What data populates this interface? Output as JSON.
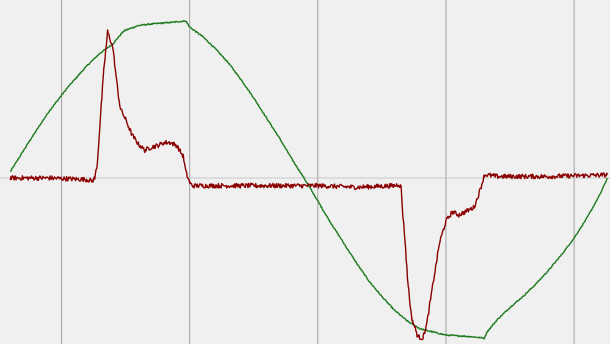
{
  "colors": {
    "background": "#f0f0f0",
    "border": "#ffffff",
    "grid": "#a0a0a0",
    "zero_line": "#c8c8c8",
    "series_green": "#1e7a1e",
    "series_red": "#8b0000"
  },
  "chart_data": {
    "type": "line",
    "title": "",
    "xlabel": "",
    "ylabel": "",
    "grid": {
      "vertical": true,
      "horizontal_zero_line": true,
      "vertical_lines_at": [
        40,
        140,
        240,
        340,
        440
      ]
    },
    "xlim": [
      -8,
      468
    ],
    "ylim": [
      -1.0,
      1.0
    ],
    "series": [
      {
        "color": "#1e7a1e",
        "noise": 0.004,
        "x": [
          0,
          15,
          30,
          45,
          60,
          70,
          80,
          88,
          90,
          100,
          110,
          125,
          137,
          140,
          150,
          160,
          170,
          180,
          190,
          200,
          210,
          220,
          230,
          240,
          250,
          260,
          270,
          280,
          290,
          300,
          310,
          320,
          325,
          330,
          340,
          360,
          370,
          372,
          380,
          390,
          400,
          410,
          420,
          430,
          440,
          450,
          460,
          466
        ],
        "y": [
          0.04,
          0.24,
          0.43,
          0.59,
          0.73,
          0.81,
          0.87,
          0.95,
          0.96,
          0.99,
          1.0,
          1.01,
          1.02,
          0.98,
          0.92,
          0.84,
          0.75,
          0.64,
          0.52,
          0.39,
          0.26,
          0.12,
          -0.01,
          -0.15,
          -0.29,
          -0.42,
          -0.55,
          -0.67,
          -0.77,
          -0.86,
          -0.93,
          -0.98,
          -0.99,
          -1.0,
          -1.02,
          -1.03,
          -1.04,
          -1.0,
          -0.92,
          -0.84,
          -0.77,
          -0.69,
          -0.6,
          -0.5,
          -0.39,
          -0.26,
          -0.11,
          0.0
        ]
      },
      {
        "color": "#8b0000",
        "noise": 0.015,
        "x": [
          0,
          30,
          60,
          64,
          66,
          68,
          70,
          73,
          76,
          80,
          84,
          86,
          90,
          95,
          100,
          105,
          110,
          115,
          120,
          125,
          130,
          135,
          137,
          140,
          142,
          150,
          200,
          240,
          270,
          300,
          303,
          305,
          306,
          308,
          310,
          313,
          318,
          322,
          325,
          330,
          335,
          340,
          345,
          350,
          355,
          362,
          365,
          368,
          370,
          372,
          380,
          420,
          466
        ],
        "y": [
          0.0,
          0.0,
          -0.01,
          -0.02,
          0.0,
          0.1,
          0.35,
          0.7,
          0.95,
          0.85,
          0.56,
          0.45,
          0.38,
          0.28,
          0.22,
          0.18,
          0.2,
          0.21,
          0.23,
          0.23,
          0.21,
          0.14,
          0.04,
          -0.03,
          -0.05,
          -0.05,
          -0.05,
          -0.05,
          -0.06,
          -0.05,
          -0.04,
          -0.06,
          -0.2,
          -0.4,
          -0.65,
          -0.9,
          -1.03,
          -1.04,
          -0.95,
          -0.68,
          -0.42,
          -0.28,
          -0.22,
          -0.24,
          -0.22,
          -0.19,
          -0.12,
          -0.04,
          0.02,
          0.02,
          0.01,
          0.01,
          0.02
        ]
      }
    ]
  }
}
